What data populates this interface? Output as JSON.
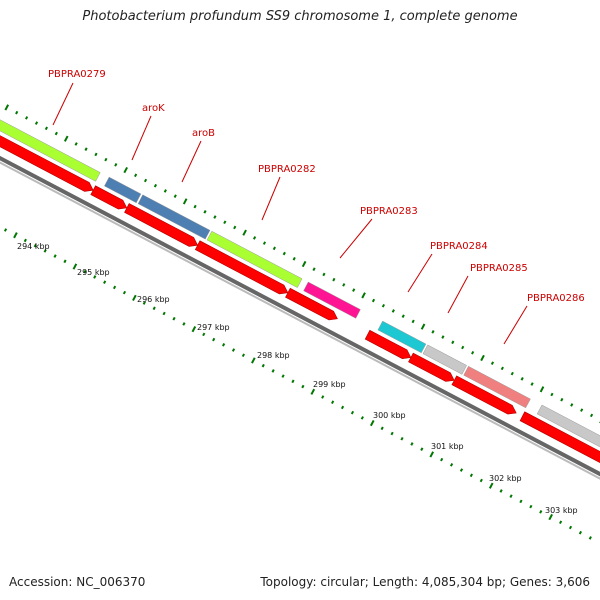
{
  "title": "Photobacterium profundum SS9 chromosome 1, complete genome",
  "footer": {
    "accession": "Accession: NC_006370",
    "summary": "Topology: circular; Length: 4,085,304 bp; Genes: 3,606"
  },
  "colors": {
    "forward_orf": "#ff0000",
    "backbone": "#888888",
    "tick": "#007700",
    "label": "#cc0000"
  },
  "genes": [
    {
      "name": "PBPRA0279",
      "color": "#aaff33"
    },
    {
      "name": "aroK",
      "color": "#4d7fb3"
    },
    {
      "name": "aroB",
      "color": "#4d7fb3"
    },
    {
      "name": "PBPRA0282",
      "color": "#aaff33"
    },
    {
      "name": "PBPRA0283",
      "color": "#ff1493"
    },
    {
      "name": "PBPRA0284",
      "color": "#1ec8d2"
    },
    {
      "name": "PBPRA0285",
      "color": "#c8c8c8"
    },
    {
      "name": "PBPRA0286",
      "color": "#f08080"
    },
    {
      "name": "",
      "color": "#c8c8c8"
    }
  ],
  "kbp_labels": [
    "294 kbp",
    "295 kbp",
    "296 kbp",
    "297 kbp",
    "298 kbp",
    "299 kbp",
    "300 kbp",
    "301 kbp",
    "302 kbp",
    "303 kbp"
  ]
}
